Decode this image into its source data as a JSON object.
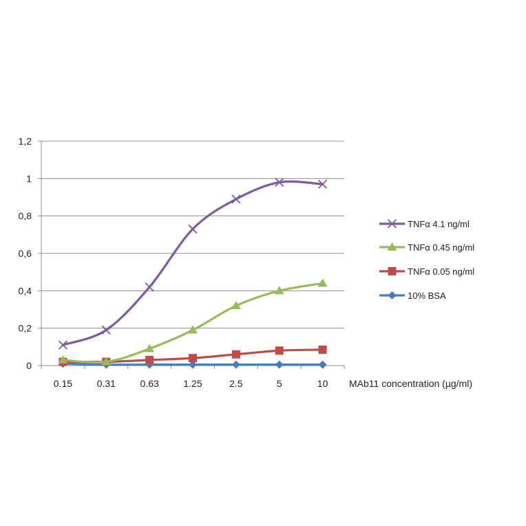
{
  "chart_data": {
    "type": "line",
    "title": "",
    "xlabel": "MAb11 concentration (µg/ml)",
    "ylabel": "",
    "categories": [
      "0.15",
      "0.31",
      "0.63",
      "1.25",
      "2.5",
      "5",
      "10"
    ],
    "ylim": [
      0,
      1.2
    ],
    "yticks": [
      "0",
      "0,2",
      "0,4",
      "0,6",
      "0,8",
      "1",
      "1,2"
    ],
    "grid": "horizontal",
    "legend_position": "right",
    "series": [
      {
        "name": "TNFα  4.1 ng/ml",
        "color": "#7f5aa2",
        "marker": "x",
        "values": [
          0.11,
          0.19,
          0.42,
          0.73,
          0.89,
          0.98,
          0.97
        ]
      },
      {
        "name": "TNFα  0.45 ng/ml",
        "color": "#98bb59",
        "marker": "triangle",
        "values": [
          0.03,
          0.02,
          0.09,
          0.19,
          0.32,
          0.4,
          0.44
        ]
      },
      {
        "name": "TNFα  0.05 ng/ml",
        "color": "#be4b48",
        "marker": "square",
        "values": [
          0.02,
          0.02,
          0.03,
          0.04,
          0.06,
          0.08,
          0.085
        ]
      },
      {
        "name": "10% BSA",
        "color": "#4a7ebb",
        "marker": "diamond",
        "values": [
          0.01,
          0.005,
          0.005,
          0.005,
          0.005,
          0.005,
          0.005
        ]
      }
    ]
  }
}
